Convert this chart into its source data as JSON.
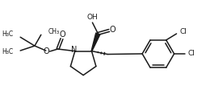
{
  "bg_color": "#ffffff",
  "line_color": "#1a1a1a",
  "text_color": "#1a1a1a",
  "lw": 1.1,
  "fs": 5.5,
  "figsize": [
    2.6,
    1.27
  ],
  "dpi": 100,
  "xlim": [
    0,
    260
  ],
  "ylim": [
    0,
    127
  ]
}
